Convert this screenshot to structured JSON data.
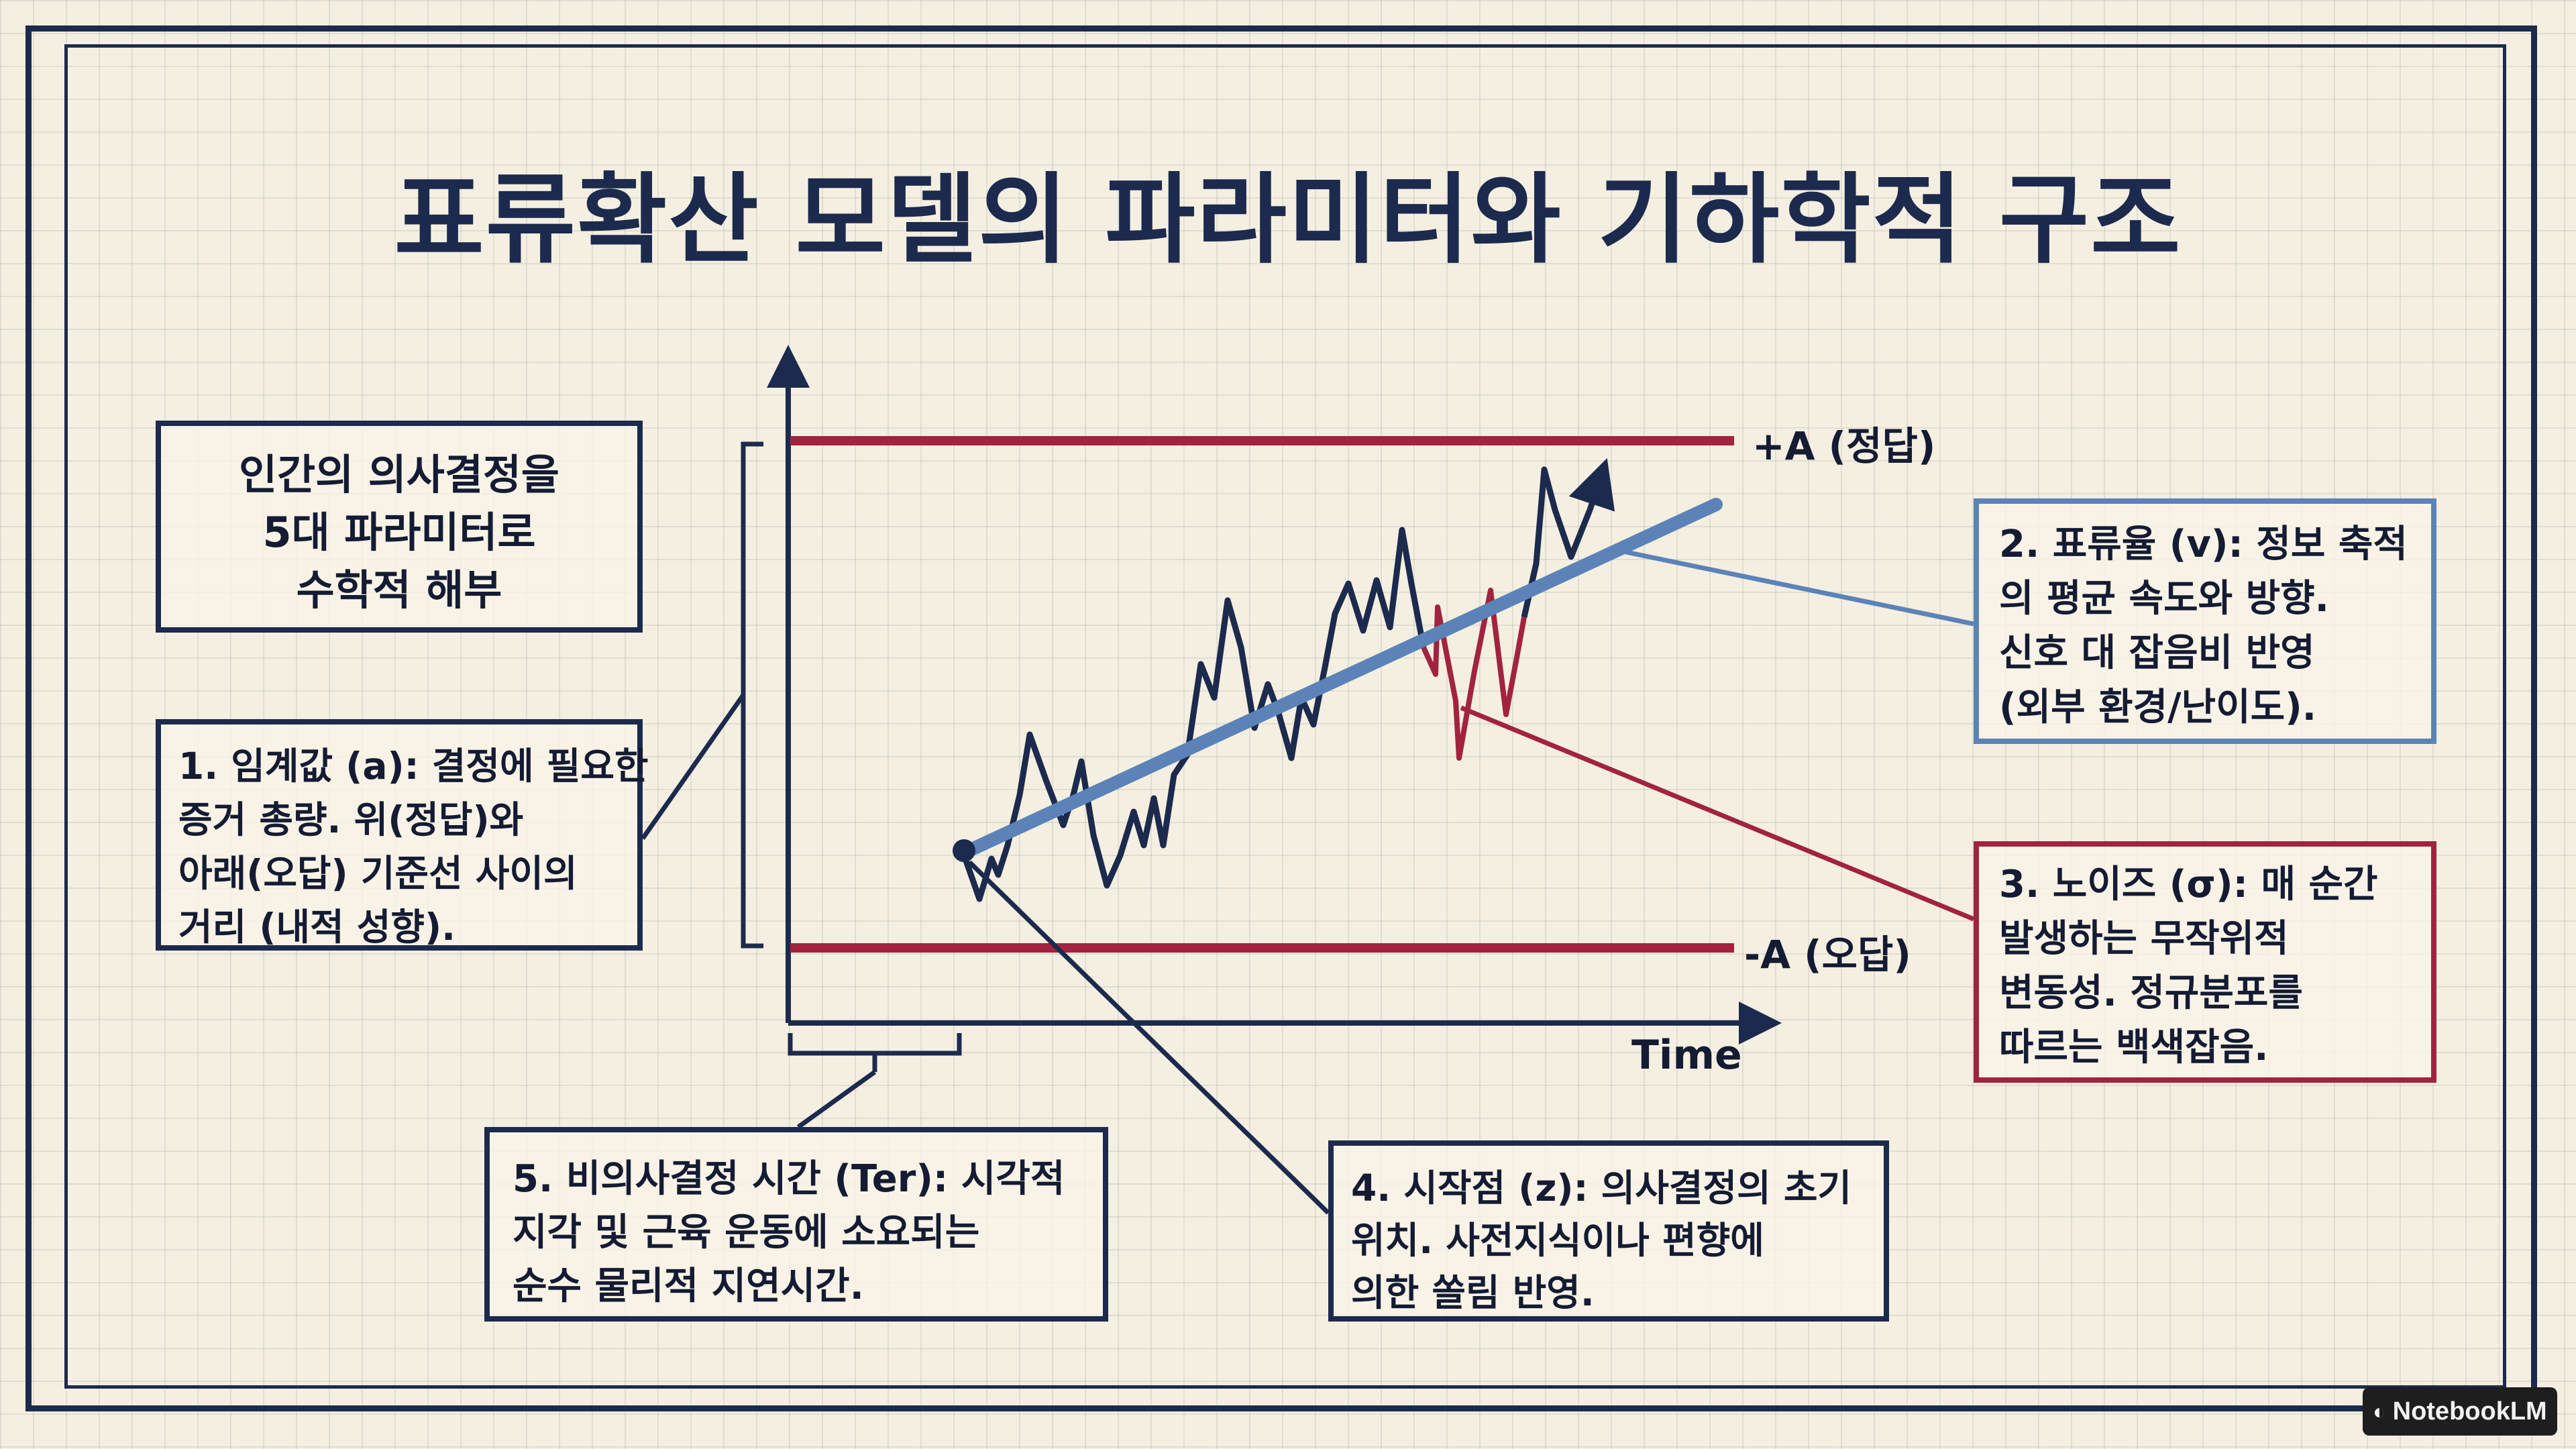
{
  "title": "표류확산 모델의 파라미터와 기하학적 구조",
  "intro": {
    "lines": [
      "인간의 의사결정을",
      "5대 파라미터로",
      "수학적 해부"
    ]
  },
  "diagram": {
    "upper_boundary_label": "+A (정답)",
    "lower_boundary_label": "-A (오답)",
    "x_axis_label": "Time"
  },
  "params": {
    "threshold": {
      "lines": [
        "1. 임계값 (a): 결정에 필요한",
        "증거 총량. 위(정답)와",
        "아래(오답) 기준선 사이의",
        "거리 (내적 성향)."
      ]
    },
    "drift": {
      "lines": [
        "2. 표류율 (v): 정보 축적",
        "의 평균 속도와 방향.",
        "신호 대 잡음비 반영",
        "(외부 환경/난이도)."
      ]
    },
    "noise": {
      "lines": [
        "3. 노이즈 (σ): 매 순간",
        "발생하는 무작위적",
        "변동성. 정규분포를",
        "따르는 백색잡음."
      ]
    },
    "start": {
      "lines": [
        "4. 시작점 (z): 의사결정의 초기",
        "위치. 사전지식이나 편향에",
        "의한 쏠림 반영."
      ]
    },
    "nondecision": {
      "lines": [
        "5. 비의사결정 시간 (Ter): 시각적",
        "지각 및 근육 운동에 소요되는",
        "순수 물리적 지연시간."
      ]
    }
  },
  "colors": {
    "navy": "#1c2a4d",
    "boundary_red": "#a12340",
    "drift_blue": "#5b83b8",
    "paper": "#f4efe0"
  },
  "watermark": {
    "icon": "notebooklm-logo-icon",
    "text": "NotebookLM"
  }
}
